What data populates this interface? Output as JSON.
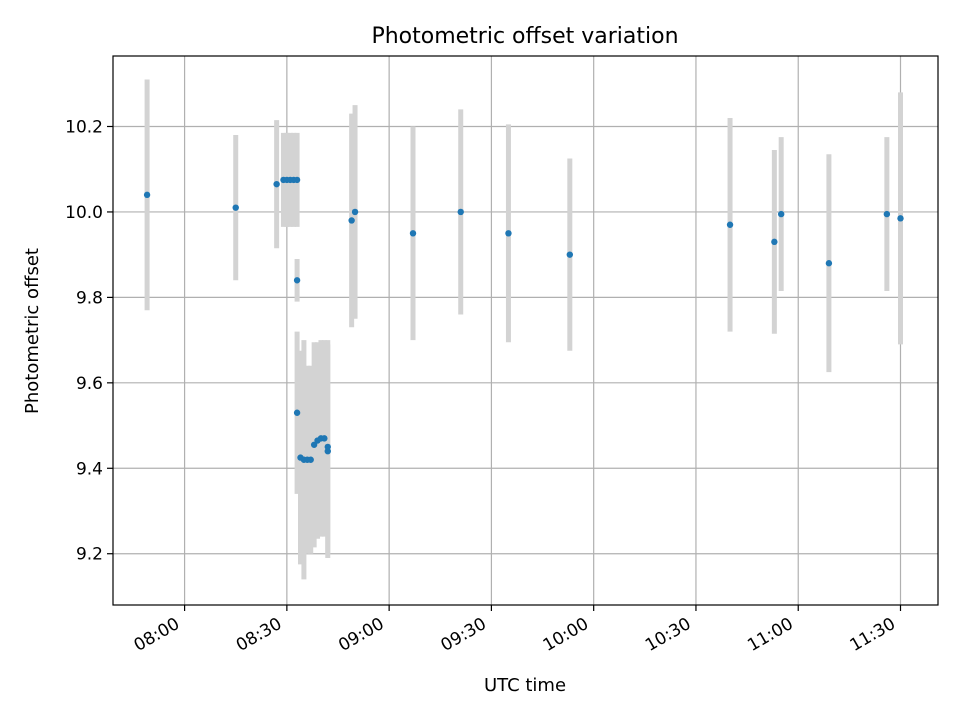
{
  "chart_data": {
    "type": "scatter",
    "title": "Photometric offset variation",
    "xlabel": "UTC time",
    "ylabel": "Photometric offset",
    "xlim": [
      "07:39",
      "11:41"
    ],
    "ylim": [
      9.08,
      10.365
    ],
    "x_ticks": [
      "08:00",
      "08:30",
      "09:00",
      "09:30",
      "10:00",
      "10:30",
      "11:00",
      "11:30"
    ],
    "y_ticks": [
      9.2,
      9.4,
      9.6,
      9.8,
      10.0,
      10.2
    ],
    "y_tick_labels": [
      "9.2",
      "9.4",
      "9.6",
      "9.8",
      "10.0",
      "10.2"
    ],
    "grid": true,
    "colors": {
      "point": "#1f77b4",
      "errorbar": "#d3d3d3",
      "grid": "#b0b0b0"
    },
    "series": [
      {
        "points": [
          {
            "x": "07:49",
            "y": 10.04,
            "err": 0.27
          },
          {
            "x": "08:15",
            "y": 10.01,
            "err": 0.17
          },
          {
            "x": "08:27",
            "y": 10.065,
            "err": 0.15
          },
          {
            "x": "08:29",
            "y": 10.075,
            "err": 0.11
          },
          {
            "x": "08:30",
            "y": 10.075,
            "err": 0.11
          },
          {
            "x": "08:31",
            "y": 10.075,
            "err": 0.11
          },
          {
            "x": "08:32",
            "y": 10.075,
            "err": 0.11
          },
          {
            "x": "08:33",
            "y": 10.075,
            "err": 0.11
          },
          {
            "x": "08:33",
            "y": 9.84,
            "err": 0.05
          },
          {
            "x": "08:33",
            "y": 9.53,
            "err": 0.19
          },
          {
            "x": "08:34",
            "y": 9.425,
            "err": 0.25
          },
          {
            "x": "08:35",
            "y": 9.42,
            "err": 0.28
          },
          {
            "x": "08:36",
            "y": 9.42,
            "err": 0.22
          },
          {
            "x": "08:37",
            "y": 9.42,
            "err": 0.22
          },
          {
            "x": "08:38",
            "y": 9.455,
            "err": 0.24
          },
          {
            "x": "08:39",
            "y": 9.465,
            "err": 0.23
          },
          {
            "x": "08:40",
            "y": 9.47,
            "err": 0.23
          },
          {
            "x": "08:41",
            "y": 9.47,
            "err": 0.23
          },
          {
            "x": "08:42",
            "y": 9.44,
            "err": 0.25
          },
          {
            "x": "08:42",
            "y": 9.45,
            "err": 0.25
          },
          {
            "x": "08:49",
            "y": 9.98,
            "err": 0.25
          },
          {
            "x": "08:50",
            "y": 10.0,
            "err": 0.25
          },
          {
            "x": "09:07",
            "y": 9.95,
            "err": 0.25
          },
          {
            "x": "09:21",
            "y": 10.0,
            "err": 0.24
          },
          {
            "x": "09:35",
            "y": 9.95,
            "err": 0.255
          },
          {
            "x": "09:53",
            "y": 9.9,
            "err": 0.225
          },
          {
            "x": "10:40",
            "y": 9.97,
            "err": 0.25
          },
          {
            "x": "10:53",
            "y": 9.93,
            "err": 0.215
          },
          {
            "x": "10:55",
            "y": 9.995,
            "err": 0.18
          },
          {
            "x": "11:09",
            "y": 9.88,
            "err": 0.255
          },
          {
            "x": "11:26",
            "y": 9.995,
            "err": 0.18
          },
          {
            "x": "11:30",
            "y": 9.985,
            "err": 0.295
          }
        ]
      }
    ]
  }
}
